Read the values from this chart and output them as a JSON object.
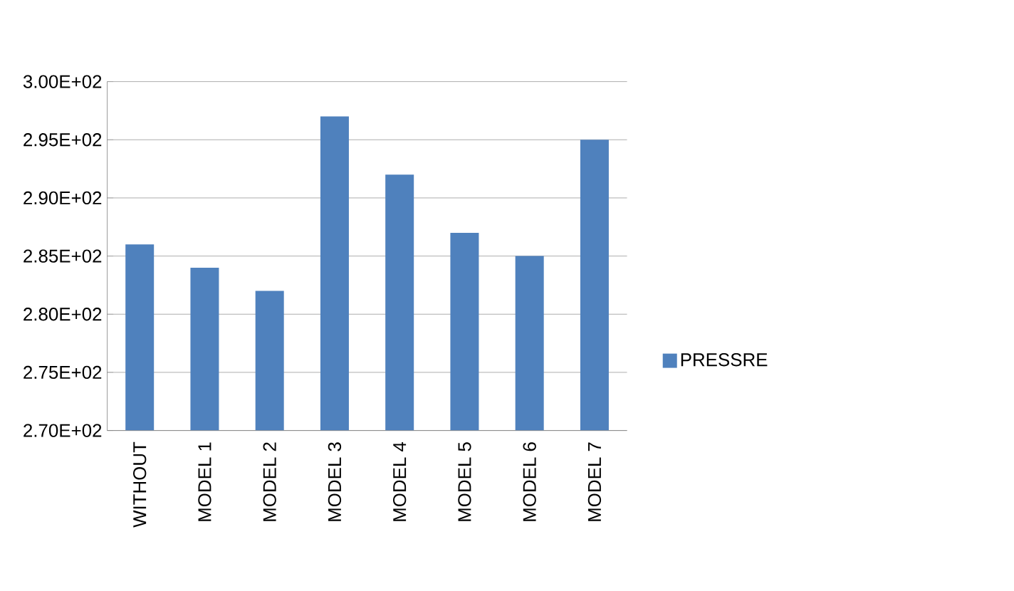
{
  "chart_data": {
    "type": "bar",
    "categories": [
      "WITHOUT",
      "MODEL 1",
      "MODEL 2",
      "MODEL 3",
      "MODEL 4",
      "MODEL 5",
      "MODEL 6",
      "MODEL 7"
    ],
    "series": [
      {
        "name": "PRESSRE",
        "color": "#4f81bd",
        "values": [
          286,
          284,
          282,
          297,
          292,
          287,
          285,
          295
        ]
      }
    ],
    "ylim": [
      270,
      300
    ],
    "yticks": [
      {
        "value": 270,
        "label": "2.70E+02"
      },
      {
        "value": 275,
        "label": "2.75E+02"
      },
      {
        "value": 280,
        "label": "2.80E+02"
      },
      {
        "value": 285,
        "label": "2.85E+02"
      },
      {
        "value": 290,
        "label": "2.90E+02"
      },
      {
        "value": 295,
        "label": "2.95E+02"
      },
      {
        "value": 300,
        "label": "3.00E+02"
      }
    ],
    "grid": "y",
    "legend": "right"
  }
}
